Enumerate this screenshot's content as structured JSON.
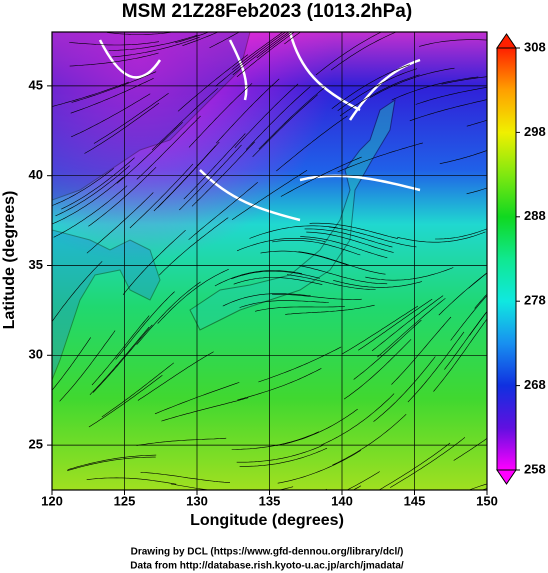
{
  "chart_data": {
    "type": "map",
    "title": "MSM 21Z28Feb2023 (1013.2hPa)",
    "xlabel": "Longitude (degrees)",
    "ylabel": "Latitude  (degrees)",
    "xlim": [
      120,
      150
    ],
    "ylim": [
      22.5,
      48
    ],
    "xticks": [
      120,
      125,
      130,
      135,
      140,
      145,
      150
    ],
    "yticks": [
      25,
      30,
      35,
      40,
      45
    ],
    "grid": true,
    "colorbar": {
      "lim": [
        258,
        308
      ],
      "ticks": [
        258,
        268,
        278,
        288,
        298,
        308
      ],
      "colormap": [
        "#ff00ff",
        "#6010e0",
        "#1030e0",
        "#1890f0",
        "#10e8e0",
        "#10e890",
        "#10d820",
        "#80e810",
        "#f0f000",
        "#ffa000",
        "#ff2000"
      ]
    },
    "credits": [
      "Drawing by DCL (https://www.gfd-dennou.org/library/dcl/)",
      "Data from http://database.rish.kyoto-u.ac.jp/arch/jmadata/"
    ]
  }
}
